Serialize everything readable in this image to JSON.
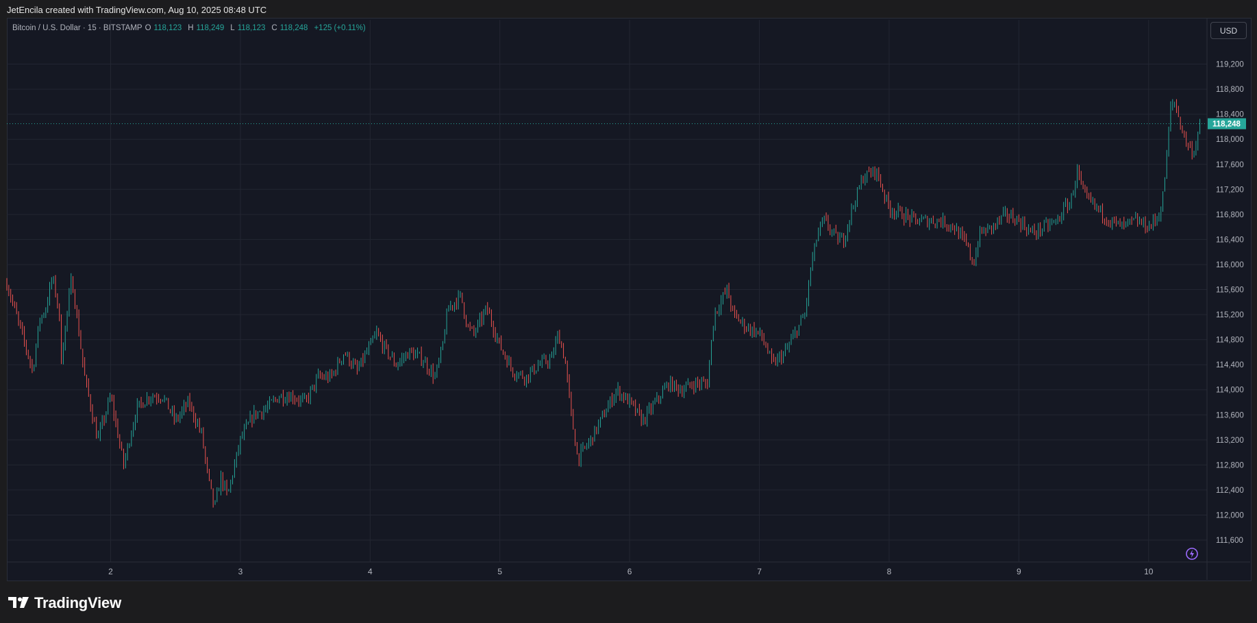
{
  "header": {
    "attribution": "JetEncila created with TradingView.com, Aug 10, 2025 08:48 UTC"
  },
  "legend": {
    "symbol": "Bitcoin / U.S. Dollar · 15 · BITSTAMP",
    "open_label": "O",
    "open": "118,123",
    "high_label": "H",
    "high": "118,249",
    "low_label": "L",
    "low": "118,123",
    "close_label": "C",
    "close": "118,248",
    "change": "+125 (+0.11%)"
  },
  "currency_button": "USD",
  "brand": {
    "name": "TradingView",
    "icon": "tradingview-logo-icon"
  },
  "colors": {
    "up": "#26a69a",
    "down": "#ef5350",
    "background": "#151823",
    "grid": "#232632",
    "price_line": "#26a69a"
  },
  "chart_data": {
    "type": "candlestick",
    "symbol": "BTCUSD",
    "exchange": "BITSTAMP",
    "timeframe_minutes": 15,
    "current_price": 118248,
    "current_price_label": "118,248",
    "y_axis": {
      "ticks": [
        111600,
        112000,
        112400,
        112800,
        113200,
        113600,
        114000,
        114400,
        114800,
        115200,
        115600,
        116000,
        116400,
        116800,
        117200,
        117600,
        118000,
        118400,
        118800,
        119200
      ],
      "tick_labels": [
        "111,600",
        "112,000",
        "112,400",
        "112,800",
        "113,200",
        "113,600",
        "114,000",
        "114,400",
        "114,800",
        "115,200",
        "115,600",
        "116,000",
        "116,400",
        "116,800",
        "117,200",
        "117,600",
        "118,000",
        "118,400",
        "118,800",
        "119,200"
      ],
      "ylim": [
        111250,
        119600
      ]
    },
    "x_axis": {
      "tick_labels": [
        "2",
        "3",
        "4",
        "5",
        "6",
        "7",
        "8",
        "9",
        "10"
      ],
      "tick_days": [
        2,
        3,
        4,
        5,
        6,
        7,
        8,
        9,
        10
      ],
      "xlim": [
        1.2,
        10.45
      ]
    },
    "grid": true,
    "price_anchors": [
      [
        1.2,
        115700
      ],
      [
        1.3,
        115000
      ],
      [
        1.4,
        114300
      ],
      [
        1.45,
        115100
      ],
      [
        1.5,
        115300
      ],
      [
        1.55,
        115800
      ],
      [
        1.6,
        115300
      ],
      [
        1.62,
        114500
      ],
      [
        1.7,
        115800
      ],
      [
        1.8,
        114200
      ],
      [
        1.9,
        113200
      ],
      [
        2.0,
        113900
      ],
      [
        2.1,
        112800
      ],
      [
        2.2,
        113700
      ],
      [
        2.3,
        113900
      ],
      [
        2.4,
        113900
      ],
      [
        2.5,
        113500
      ],
      [
        2.6,
        113800
      ],
      [
        2.7,
        113300
      ],
      [
        2.75,
        112600
      ],
      [
        2.8,
        112100
      ],
      [
        2.85,
        112600
      ],
      [
        2.9,
        112300
      ],
      [
        3.0,
        113200
      ],
      [
        3.1,
        113600
      ],
      [
        3.2,
        113700
      ],
      [
        3.3,
        113900
      ],
      [
        3.4,
        113900
      ],
      [
        3.5,
        113800
      ],
      [
        3.6,
        114200
      ],
      [
        3.7,
        114200
      ],
      [
        3.8,
        114600
      ],
      [
        3.9,
        114300
      ],
      [
        4.0,
        114700
      ],
      [
        4.05,
        114900
      ],
      [
        4.1,
        114700
      ],
      [
        4.2,
        114400
      ],
      [
        4.3,
        114600
      ],
      [
        4.4,
        114500
      ],
      [
        4.5,
        114200
      ],
      [
        4.55,
        114600
      ],
      [
        4.6,
        115300
      ],
      [
        4.7,
        115500
      ],
      [
        4.75,
        115000
      ],
      [
        4.8,
        114900
      ],
      [
        4.9,
        115300
      ],
      [
        5.0,
        114700
      ],
      [
        5.1,
        114300
      ],
      [
        5.2,
        114200
      ],
      [
        5.3,
        114400
      ],
      [
        5.4,
        114500
      ],
      [
        5.45,
        114900
      ],
      [
        5.5,
        114500
      ],
      [
        5.55,
        113600
      ],
      [
        5.6,
        112900
      ],
      [
        5.7,
        113200
      ],
      [
        5.8,
        113600
      ],
      [
        5.9,
        114000
      ],
      [
        6.0,
        113800
      ],
      [
        6.1,
        113500
      ],
      [
        6.2,
        113800
      ],
      [
        6.3,
        114100
      ],
      [
        6.4,
        114000
      ],
      [
        6.5,
        114100
      ],
      [
        6.6,
        114100
      ],
      [
        6.65,
        115200
      ],
      [
        6.75,
        115600
      ],
      [
        6.8,
        115200
      ],
      [
        6.9,
        115000
      ],
      [
        7.0,
        114900
      ],
      [
        7.05,
        114700
      ],
      [
        7.1,
        114400
      ],
      [
        7.2,
        114600
      ],
      [
        7.3,
        115000
      ],
      [
        7.35,
        115200
      ],
      [
        7.4,
        116000
      ],
      [
        7.45,
        116500
      ],
      [
        7.5,
        116700
      ],
      [
        7.6,
        116400
      ],
      [
        7.65,
        116400
      ],
      [
        7.7,
        116800
      ],
      [
        7.8,
        117400
      ],
      [
        7.9,
        117500
      ],
      [
        7.95,
        117200
      ],
      [
        8.0,
        116900
      ],
      [
        8.1,
        116800
      ],
      [
        8.2,
        116700
      ],
      [
        8.3,
        116700
      ],
      [
        8.4,
        116700
      ],
      [
        8.5,
        116600
      ],
      [
        8.6,
        116300
      ],
      [
        8.65,
        116000
      ],
      [
        8.7,
        116500
      ],
      [
        8.8,
        116600
      ],
      [
        8.9,
        116800
      ],
      [
        9.0,
        116700
      ],
      [
        9.1,
        116500
      ],
      [
        9.2,
        116600
      ],
      [
        9.3,
        116700
      ],
      [
        9.35,
        116900
      ],
      [
        9.4,
        117000
      ],
      [
        9.45,
        117500
      ],
      [
        9.5,
        117100
      ],
      [
        9.6,
        116900
      ],
      [
        9.7,
        116700
      ],
      [
        9.8,
        116600
      ],
      [
        9.9,
        116700
      ],
      [
        10.0,
        116600
      ],
      [
        10.05,
        116700
      ],
      [
        10.1,
        116900
      ],
      [
        10.13,
        117500
      ],
      [
        10.17,
        118500
      ],
      [
        10.2,
        118600
      ],
      [
        10.25,
        118200
      ],
      [
        10.3,
        117900
      ],
      [
        10.35,
        117800
      ],
      [
        10.38,
        118100
      ],
      [
        10.4,
        118248
      ]
    ],
    "bar_interval_days": 0.015
  }
}
